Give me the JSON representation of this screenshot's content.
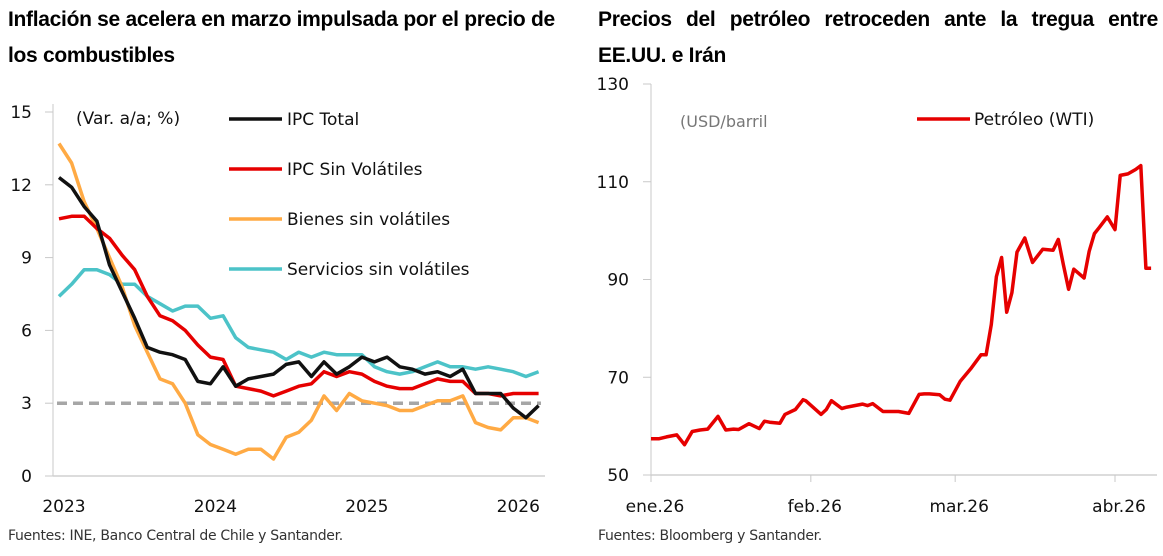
{
  "chart_data": [
    {
      "type": "line",
      "title": "Inflación se acelera en marzo impulsada por el precio de los combustibles",
      "unit_label": "(Var. a/a; %)",
      "xlabel": "",
      "ylabel": "",
      "ylim": [
        0,
        15
      ],
      "yticks": [
        "0",
        "3",
        "6",
        "9",
        "12",
        "15"
      ],
      "ytick_values": [
        0,
        3,
        6,
        9,
        12,
        15
      ],
      "xtick_labels": [
        "2023",
        "2024",
        "2025",
        "2026"
      ],
      "xtick_index": [
        0,
        12,
        24,
        36
      ],
      "x": [
        "ene.23",
        "feb.23",
        "mar.23",
        "abr.23",
        "may.23",
        "jun.23",
        "jul.23",
        "ago.23",
        "sep.23",
        "oct.23",
        "nov.23",
        "dic.23",
        "ene.24",
        "feb.24",
        "mar.24",
        "abr.24",
        "may.24",
        "jun.24",
        "jul.24",
        "ago.24",
        "sep.24",
        "oct.24",
        "nov.24",
        "dic.24",
        "ene.25",
        "feb.25",
        "mar.25",
        "abr.25",
        "may.25",
        "jun.25",
        "jul.25",
        "ago.25",
        "sep.25",
        "oct.25",
        "nov.25",
        "dic.25",
        "ene.26",
        "feb.26",
        "mar.26"
      ],
      "reference_line": {
        "value": 3.0,
        "color": "#a6a6a6",
        "style": "dashed"
      },
      "legend_position": "top-right",
      "series": [
        {
          "name": "IPC Total",
          "color": "#111111",
          "values": [
            12.3,
            11.9,
            11.1,
            10.5,
            8.7,
            7.6,
            6.5,
            5.3,
            5.1,
            5.0,
            4.8,
            3.9,
            3.8,
            4.5,
            3.7,
            4.0,
            4.1,
            4.2,
            4.6,
            4.7,
            4.1,
            4.7,
            4.2,
            4.5,
            4.9,
            4.7,
            4.9,
            4.5,
            4.4,
            4.2,
            4.3,
            4.1,
            4.4,
            3.4,
            3.4,
            3.4,
            2.8,
            2.4,
            2.9
          ]
        },
        {
          "name": "IPC Sin Volátiles",
          "color": "#e60000",
          "values": [
            10.6,
            10.7,
            10.7,
            10.2,
            9.8,
            9.1,
            8.5,
            7.4,
            6.6,
            6.4,
            6.0,
            5.4,
            4.9,
            4.8,
            3.7,
            3.6,
            3.5,
            3.3,
            3.5,
            3.7,
            3.8,
            4.3,
            4.1,
            4.3,
            4.2,
            3.9,
            3.7,
            3.6,
            3.6,
            3.8,
            4.0,
            3.9,
            3.9,
            3.4,
            3.4,
            3.3,
            3.4,
            3.4,
            3.4
          ]
        },
        {
          "name": "Bienes sin volátiles",
          "color": "#ffaa44",
          "values": [
            13.7,
            12.9,
            11.3,
            10.2,
            9.0,
            7.8,
            6.2,
            5.1,
            4.0,
            3.8,
            3.0,
            1.7,
            1.3,
            1.1,
            0.9,
            1.1,
            1.1,
            0.7,
            1.6,
            1.8,
            2.3,
            3.3,
            2.7,
            3.4,
            3.1,
            3.0,
            2.9,
            2.7,
            2.7,
            2.9,
            3.1,
            3.1,
            3.3,
            2.2,
            2.0,
            1.9,
            2.4,
            2.4,
            2.2
          ]
        },
        {
          "name": "Servicios sin volátiles",
          "color": "#4cc3c8",
          "values": [
            7.4,
            7.9,
            8.5,
            8.5,
            8.3,
            7.9,
            7.9,
            7.4,
            7.1,
            6.8,
            7.0,
            7.0,
            6.5,
            6.6,
            5.7,
            5.3,
            5.2,
            5.1,
            4.8,
            5.1,
            4.9,
            5.1,
            5.0,
            5.0,
            5.0,
            4.5,
            4.3,
            4.2,
            4.3,
            4.5,
            4.7,
            4.5,
            4.5,
            4.4,
            4.5,
            4.4,
            4.3,
            4.1,
            4.3
          ]
        }
      ]
    },
    {
      "type": "line",
      "title": "Precios del petróleo retroceden ante la tregua entre EE.UU. e Irán",
      "unit_label": "(USD/barril",
      "xlabel": "",
      "ylabel": "",
      "ylim": [
        50,
        130
      ],
      "yticks": [
        "50",
        "70",
        "90",
        "110",
        "130"
      ],
      "ytick_values": [
        50,
        70,
        90,
        110,
        130
      ],
      "xtick_labels": [
        "ene.26",
        "feb.26",
        "mar.26",
        "abr.26"
      ],
      "xtick_day": [
        0,
        31,
        59,
        90
      ],
      "xlim_days": [
        0,
        97
      ],
      "legend_position": "top-right",
      "series": [
        {
          "name": "Petróleo (WTI)",
          "color": "#e60000",
          "day": [
            0,
            1.5,
            3,
            5,
            6.5,
            8,
            9.5,
            11,
            13,
            14.5,
            16,
            17,
            19,
            21,
            22,
            23,
            25,
            26,
            28,
            29.5,
            30,
            31.5,
            33,
            34,
            35,
            37,
            38,
            39,
            41,
            42,
            43,
            45,
            46,
            47,
            48,
            50,
            52,
            53,
            54,
            56,
            57,
            58,
            60,
            62,
            64,
            65,
            66,
            67,
            68,
            69,
            70,
            71,
            72.5,
            73,
            74,
            76,
            78,
            79,
            80,
            81,
            82,
            84,
            85,
            86,
            87,
            88.5,
            90,
            91,
            92.5,
            94,
            95,
            96,
            97
          ],
          "values": [
            57.4,
            57.4,
            57.8,
            58.2,
            56.2,
            58.9,
            59.2,
            59.4,
            62.0,
            59.2,
            59.4,
            59.3,
            60.5,
            59.5,
            61.0,
            60.8,
            60.6,
            62.4,
            63.4,
            65.4,
            65.2,
            63.8,
            62.4,
            63.4,
            65.2,
            63.6,
            63.9,
            64.1,
            64.5,
            64.2,
            64.6,
            63.0,
            63.0,
            63.0,
            63.0,
            62.6,
            66.5,
            66.6,
            66.6,
            66.4,
            65.5,
            65.3,
            69.2,
            71.7,
            74.6,
            74.6,
            80.8,
            90.6,
            94.5,
            83.3,
            87.3,
            95.6,
            98.5,
            96.8,
            93.5,
            96.2,
            96.0,
            98.2,
            93.0,
            88.0,
            92.1,
            90.3,
            95.8,
            99.4,
            100.7,
            102.8,
            100.2,
            111.3,
            111.6,
            112.5,
            113.3,
            92.3,
            92.3
          ]
        }
      ]
    }
  ],
  "texts": {
    "title_left": "Inflación se acelera en marzo impulsada por el precio de los combustibles",
    "title_right": "Precios del petróleo retroceden ante la tregua entre EE.UU. e Irán",
    "source_left": "Fuentes: INE, Banco Central de Chile y Santander.",
    "source_right": "Fuentes: Bloomberg y Santander."
  }
}
